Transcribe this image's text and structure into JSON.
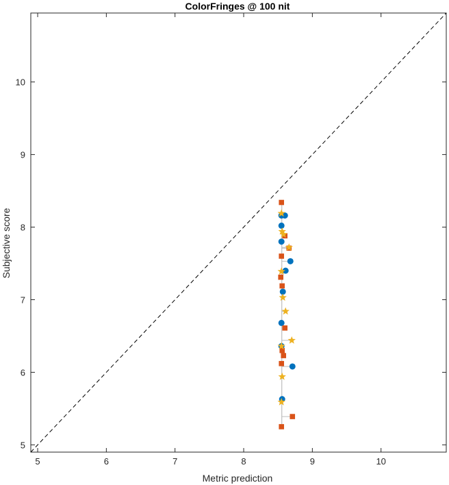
{
  "chart_data": {
    "type": "scatter",
    "title": "ColorFringes @ 100 nit",
    "xlabel": "Metric prediction",
    "ylabel": "Subjective score",
    "xlim": [
      4.9,
      10.95
    ],
    "ylim": [
      4.9,
      10.95
    ],
    "xticks": [
      5,
      6,
      7,
      8,
      9,
      10
    ],
    "yticks": [
      5,
      6,
      7,
      8,
      9,
      10
    ],
    "xtick_labels": [
      "5",
      "6",
      "7",
      "8",
      "9",
      "10"
    ],
    "ytick_labels": [
      "5",
      "6",
      "7",
      "8",
      "9",
      "10"
    ],
    "grid": false,
    "legend": "none",
    "reference_line": {
      "style": "dashed",
      "from": [
        4.9,
        4.9
      ],
      "to": [
        10.95,
        10.95
      ],
      "color": "#000000"
    },
    "connector_color": "#bdbdbd",
    "series": [
      {
        "marker": "circle",
        "color": "#0072BD",
        "points": [
          [
            8.56,
            5.63
          ],
          [
            8.55,
            6.36
          ],
          [
            8.55,
            6.68
          ],
          [
            8.57,
            7.11
          ],
          [
            8.61,
            7.4
          ],
          [
            8.68,
            7.53
          ],
          [
            8.55,
            7.8
          ],
          [
            8.55,
            8.02
          ],
          [
            8.55,
            8.16
          ],
          [
            8.6,
            8.16
          ],
          [
            8.71,
            6.08
          ]
        ]
      },
      {
        "marker": "square",
        "color": "#D95319",
        "points": [
          [
            8.55,
            5.25
          ],
          [
            8.71,
            5.39
          ],
          [
            8.55,
            6.12
          ],
          [
            8.58,
            6.23
          ],
          [
            8.56,
            6.3
          ],
          [
            8.6,
            6.61
          ],
          [
            8.56,
            7.19
          ],
          [
            8.54,
            7.31
          ],
          [
            8.55,
            7.6
          ],
          [
            8.66,
            7.71
          ],
          [
            8.6,
            7.88
          ],
          [
            8.55,
            8.34
          ]
        ]
      },
      {
        "marker": "star",
        "color": "#EDB120",
        "points": [
          [
            8.55,
            5.59
          ],
          [
            8.56,
            5.94
          ],
          [
            8.55,
            6.36
          ],
          [
            8.7,
            6.44
          ],
          [
            8.61,
            6.84
          ],
          [
            8.57,
            7.03
          ],
          [
            8.55,
            7.39
          ],
          [
            8.66,
            7.72
          ],
          [
            8.58,
            7.9
          ],
          [
            8.56,
            7.94
          ],
          [
            8.55,
            8.19
          ]
        ]
      }
    ]
  }
}
